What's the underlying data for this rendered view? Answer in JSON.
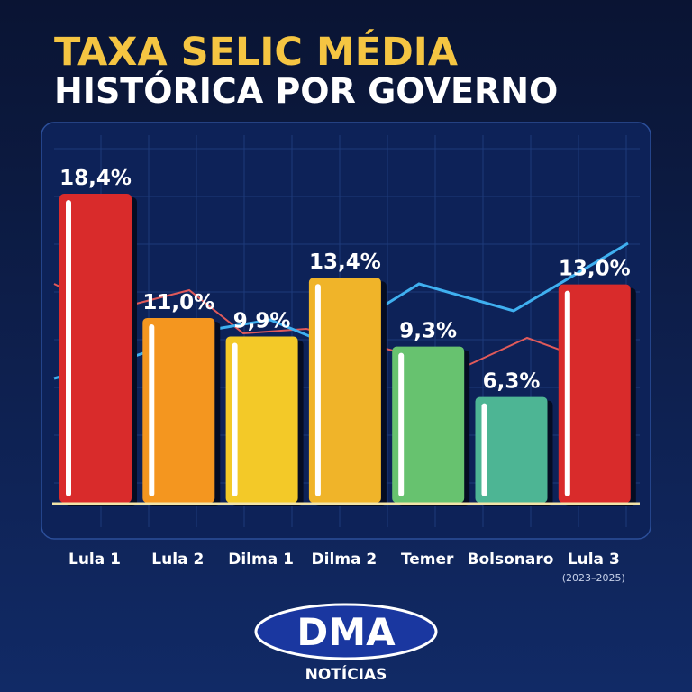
{
  "title": "TAXA SELIC MÉDIA",
  "subtitle": "HISTÓRICA POR GOVERNO",
  "chart_data": {
    "type": "bar",
    "categories": [
      "Lula 1",
      "Lula 2",
      "Dilma 1",
      "Dilma 2",
      "Temer",
      "Bolsonaro",
      "Lula 3"
    ],
    "category_notes": [
      null,
      null,
      null,
      null,
      null,
      null,
      "(2023–2025)"
    ],
    "values": [
      18.4,
      11.0,
      9.9,
      13.4,
      9.3,
      6.3,
      13.0
    ],
    "value_labels": [
      "18,4%",
      "11,0%",
      "9,9%",
      "13,4%",
      "9,3%",
      "6,3%",
      "13,0%"
    ],
    "colors": [
      "#d92b2b",
      "#f4961f",
      "#f3c928",
      "#f0b429",
      "#67c26f",
      "#4db594",
      "#d92b2b"
    ]
  },
  "logo": {
    "name": "DMA",
    "tagline": "NOTÍCIAS"
  }
}
